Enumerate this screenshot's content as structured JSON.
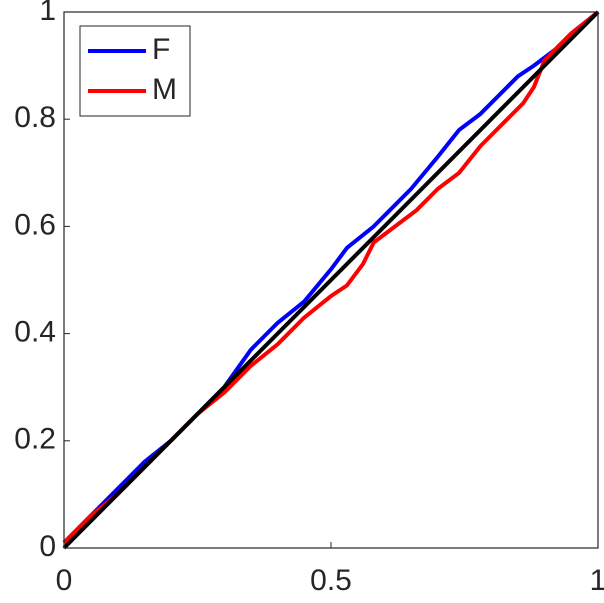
{
  "chart_data": {
    "type": "line",
    "series": [
      {
        "name": "F",
        "color": "#0000ff",
        "x": [
          0,
          0.05,
          0.1,
          0.15,
          0.2,
          0.25,
          0.3,
          0.35,
          0.4,
          0.45,
          0.5,
          0.53,
          0.58,
          0.6,
          0.65,
          0.7,
          0.74,
          0.78,
          0.82,
          0.85,
          0.88,
          0.92,
          0.95,
          1
        ],
        "values": [
          0.01,
          0.06,
          0.11,
          0.16,
          0.2,
          0.25,
          0.3,
          0.37,
          0.42,
          0.46,
          0.52,
          0.56,
          0.6,
          0.62,
          0.67,
          0.73,
          0.78,
          0.81,
          0.85,
          0.88,
          0.9,
          0.93,
          0.96,
          1
        ]
      },
      {
        "name": "M",
        "color": "#ff0000",
        "x": [
          0,
          0.05,
          0.1,
          0.15,
          0.2,
          0.25,
          0.3,
          0.35,
          0.4,
          0.45,
          0.5,
          0.53,
          0.56,
          0.58,
          0.62,
          0.66,
          0.7,
          0.74,
          0.78,
          0.82,
          0.86,
          0.88,
          0.9,
          0.95,
          1
        ],
        "values": [
          0.01,
          0.06,
          0.1,
          0.15,
          0.2,
          0.25,
          0.29,
          0.34,
          0.38,
          0.43,
          0.47,
          0.49,
          0.53,
          0.57,
          0.6,
          0.63,
          0.67,
          0.7,
          0.75,
          0.79,
          0.83,
          0.86,
          0.91,
          0.96,
          1
        ]
      },
      {
        "color": "#000000",
        "x": [
          0,
          1
        ],
        "values": [
          0,
          1
        ]
      }
    ],
    "xlim": [
      0,
      1
    ],
    "xticks": [
      0,
      0.5,
      1
    ],
    "ylim": [
      0,
      1
    ],
    "yticks": [
      0,
      0.2,
      0.4,
      0.6,
      0.8,
      1
    ],
    "legend": "upper-left"
  }
}
